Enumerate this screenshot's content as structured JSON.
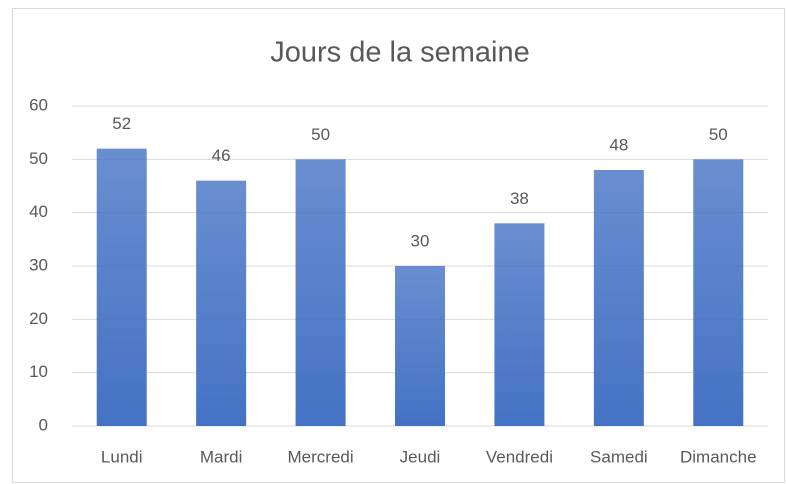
{
  "chart_data": {
    "type": "bar",
    "title": "Jours de la semaine",
    "categories": [
      "Lundi",
      "Mardi",
      "Mercredi",
      "Jeudi",
      "Vendredi",
      "Samedi",
      "Dimanche"
    ],
    "values": [
      52,
      46,
      50,
      30,
      38,
      48,
      50
    ],
    "color": "#4472c4",
    "ylim": [
      0,
      60
    ],
    "yticks": [
      0,
      10,
      20,
      30,
      40,
      50,
      60
    ],
    "grid": true
  }
}
